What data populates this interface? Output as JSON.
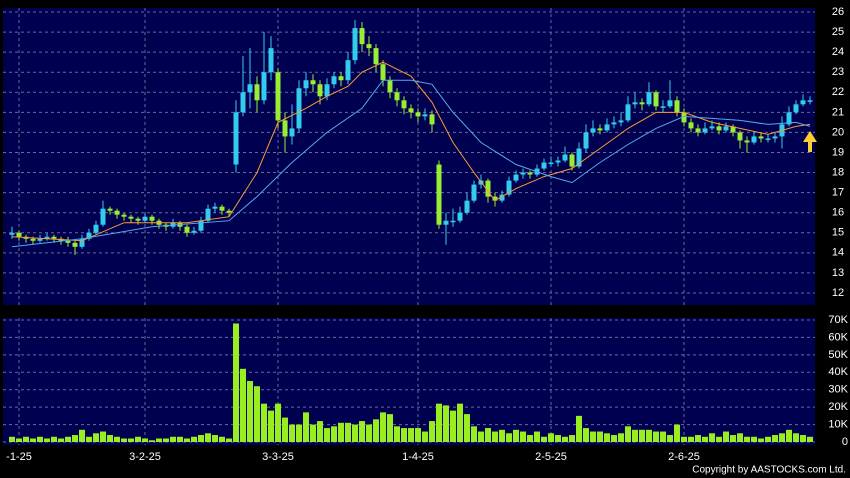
{
  "chart_data": {
    "type": "candlestick",
    "up_color": "#33ccee",
    "down_color": "#99ee33",
    "grid": true,
    "ylim": [
      11.4,
      26.2
    ],
    "yticks": [
      12,
      13,
      14,
      15,
      16,
      17,
      18,
      19,
      20,
      21,
      22,
      23,
      24,
      25,
      26
    ],
    "categories": [
      null,
      "-1-25",
      null,
      null,
      null,
      null,
      null,
      null,
      null,
      null,
      null,
      null,
      null,
      null,
      null,
      null,
      null,
      null,
      null,
      "3-2-25",
      null,
      null,
      null,
      null,
      null,
      null,
      null,
      null,
      null,
      null,
      null,
      null,
      null,
      null,
      null,
      null,
      null,
      null,
      "3-3-25",
      null,
      null,
      null,
      null,
      null,
      null,
      null,
      null,
      null,
      null,
      null,
      null,
      null,
      null,
      null,
      null,
      null,
      null,
      null,
      "1-4-25",
      null,
      null,
      null,
      null,
      null,
      null,
      null,
      null,
      null,
      null,
      null,
      null,
      null,
      null,
      null,
      null,
      null,
      null,
      "2-5-25",
      null,
      null,
      null,
      null,
      null,
      null,
      null,
      null,
      null,
      null,
      null,
      null,
      null,
      null,
      null,
      null,
      null,
      null,
      "2-6-25",
      null,
      null,
      null,
      null,
      null,
      null,
      null,
      null,
      null,
      null,
      null,
      null,
      null,
      null,
      null,
      null,
      null,
      null
    ],
    "candles": [
      [
        14.9,
        15.3,
        14.7,
        15.0
      ],
      [
        15.0,
        15.1,
        14.6,
        14.8
      ],
      [
        14.8,
        14.9,
        14.5,
        14.7
      ],
      [
        14.7,
        14.8,
        14.4,
        14.6
      ],
      [
        14.6,
        14.9,
        14.5,
        14.7
      ],
      [
        14.7,
        15.0,
        14.6,
        14.8
      ],
      [
        14.8,
        14.9,
        14.5,
        14.7
      ],
      [
        14.7,
        14.8,
        14.4,
        14.6
      ],
      [
        14.6,
        14.8,
        14.3,
        14.5
      ],
      [
        14.5,
        14.6,
        13.9,
        14.3
      ],
      [
        14.3,
        14.9,
        14.2,
        14.7
      ],
      [
        14.7,
        15.2,
        14.6,
        15.0
      ],
      [
        15.0,
        15.6,
        14.9,
        15.4
      ],
      [
        15.4,
        16.6,
        15.3,
        16.2
      ],
      [
        16.2,
        16.3,
        15.9,
        16.1
      ],
      [
        16.1,
        16.2,
        15.7,
        15.9
      ],
      [
        15.9,
        16.0,
        15.6,
        15.8
      ],
      [
        15.8,
        15.9,
        15.5,
        15.7
      ],
      [
        15.7,
        15.8,
        15.4,
        15.6
      ],
      [
        15.6,
        16.0,
        15.5,
        15.8
      ],
      [
        15.8,
        15.9,
        15.4,
        15.6
      ],
      [
        15.6,
        15.7,
        15.2,
        15.4
      ],
      [
        15.4,
        15.5,
        15.1,
        15.3
      ],
      [
        15.3,
        15.7,
        15.2,
        15.5
      ],
      [
        15.5,
        15.6,
        15.1,
        15.3
      ],
      [
        15.3,
        15.4,
        14.8,
        15.0
      ],
      [
        15.0,
        15.3,
        14.9,
        15.1
      ],
      [
        15.1,
        15.8,
        15.0,
        15.6
      ],
      [
        15.6,
        16.4,
        15.5,
        16.2
      ],
      [
        16.2,
        16.5,
        16.0,
        16.3
      ],
      [
        16.3,
        16.4,
        15.9,
        16.1
      ],
      [
        16.1,
        16.2,
        15.8,
        16.0
      ],
      [
        18.4,
        21.6,
        18.0,
        21.0
      ],
      [
        21.0,
        23.8,
        20.8,
        22.0
      ],
      [
        22.0,
        24.2,
        21.2,
        22.4
      ],
      [
        22.4,
        22.8,
        21.0,
        21.6
      ],
      [
        21.6,
        25.0,
        21.4,
        23.0
      ],
      [
        23.0,
        24.8,
        22.6,
        24.2
      ],
      [
        23.0,
        23.2,
        20.2,
        20.6
      ],
      [
        20.6,
        21.0,
        19.0,
        19.8
      ],
      [
        19.8,
        21.4,
        19.4,
        20.2
      ],
      [
        20.2,
        22.6,
        20.0,
        22.2
      ],
      [
        22.2,
        23.0,
        21.8,
        22.6
      ],
      [
        22.6,
        22.9,
        22.0,
        22.4
      ],
      [
        22.4,
        22.6,
        21.4,
        21.8
      ],
      [
        21.8,
        22.7,
        21.6,
        22.4
      ],
      [
        22.4,
        23.0,
        22.2,
        22.8
      ],
      [
        22.8,
        23.0,
        22.3,
        22.6
      ],
      [
        22.6,
        24.0,
        22.4,
        23.6
      ],
      [
        23.6,
        25.6,
        23.4,
        25.2
      ],
      [
        25.2,
        25.5,
        24.0,
        24.4
      ],
      [
        24.4,
        24.8,
        23.8,
        24.2
      ],
      [
        24.2,
        24.4,
        23.0,
        23.4
      ],
      [
        23.4,
        23.6,
        22.3,
        22.6
      ],
      [
        22.6,
        22.8,
        21.7,
        22.0
      ],
      [
        22.0,
        22.2,
        21.3,
        21.6
      ],
      [
        21.6,
        21.8,
        20.9,
        21.2
      ],
      [
        21.2,
        21.4,
        20.7,
        21.0
      ],
      [
        21.0,
        21.2,
        20.5,
        20.8
      ],
      [
        20.8,
        21.2,
        20.6,
        20.9
      ],
      [
        20.9,
        21.1,
        20.0,
        20.4
      ],
      [
        18.4,
        18.6,
        15.2,
        15.4
      ],
      [
        15.4,
        16.0,
        14.4,
        15.6
      ],
      [
        15.6,
        16.2,
        15.3,
        15.6
      ],
      [
        15.6,
        16.3,
        15.5,
        16.0
      ],
      [
        16.0,
        17.0,
        15.9,
        16.6
      ],
      [
        16.6,
        17.6,
        16.5,
        17.4
      ],
      [
        17.4,
        17.9,
        17.2,
        17.6
      ],
      [
        17.6,
        17.7,
        16.5,
        16.8
      ],
      [
        16.8,
        17.0,
        16.3,
        16.6
      ],
      [
        16.6,
        17.1,
        16.5,
        16.9
      ],
      [
        16.9,
        17.8,
        16.8,
        17.6
      ],
      [
        17.6,
        18.1,
        17.5,
        17.9
      ],
      [
        17.9,
        18.2,
        17.7,
        18.0
      ],
      [
        18.0,
        18.1,
        17.7,
        17.9
      ],
      [
        17.9,
        18.4,
        17.8,
        18.2
      ],
      [
        18.2,
        18.7,
        18.1,
        18.5
      ],
      [
        18.5,
        18.8,
        18.3,
        18.5
      ],
      [
        18.5,
        18.8,
        18.3,
        18.6
      ],
      [
        18.6,
        19.3,
        18.5,
        18.9
      ],
      [
        18.9,
        19.0,
        18.1,
        18.3
      ],
      [
        18.3,
        19.5,
        18.2,
        19.2
      ],
      [
        19.2,
        20.4,
        19.0,
        20.0
      ],
      [
        20.0,
        20.6,
        19.8,
        20.2
      ],
      [
        20.2,
        20.4,
        19.9,
        20.1
      ],
      [
        20.1,
        20.7,
        20.0,
        20.4
      ],
      [
        20.4,
        20.8,
        20.2,
        20.5
      ],
      [
        20.5,
        21.0,
        20.3,
        20.6
      ],
      [
        20.6,
        21.8,
        20.5,
        21.4
      ],
      [
        21.4,
        22.0,
        21.2,
        21.5
      ],
      [
        21.5,
        21.7,
        21.1,
        21.4
      ],
      [
        21.4,
        22.5,
        21.3,
        22.0
      ],
      [
        22.0,
        22.1,
        21.1,
        21.3
      ],
      [
        21.3,
        21.6,
        21.0,
        21.3
      ],
      [
        21.3,
        22.6,
        21.2,
        21.6
      ],
      [
        21.6,
        21.8,
        20.8,
        21.0
      ],
      [
        21.0,
        21.2,
        20.3,
        20.5
      ],
      [
        20.5,
        20.7,
        20.0,
        20.2
      ],
      [
        20.2,
        20.4,
        19.8,
        20.0
      ],
      [
        20.0,
        20.5,
        19.9,
        20.2
      ],
      [
        20.2,
        20.6,
        20.1,
        20.3
      ],
      [
        20.3,
        20.5,
        19.9,
        20.1
      ],
      [
        20.1,
        20.5,
        20.0,
        20.3
      ],
      [
        20.3,
        20.4,
        19.8,
        20.0
      ],
      [
        20.0,
        20.1,
        19.2,
        19.6
      ],
      [
        19.6,
        19.8,
        19.0,
        19.5
      ],
      [
        19.5,
        20.0,
        19.4,
        19.8
      ],
      [
        19.8,
        20.0,
        19.5,
        19.7
      ],
      [
        19.7,
        19.9,
        19.5,
        19.7
      ],
      [
        19.7,
        20.0,
        19.5,
        19.8
      ],
      [
        19.8,
        20.8,
        19.2,
        20.4
      ],
      [
        20.4,
        21.3,
        20.3,
        21.0
      ],
      [
        21.0,
        21.6,
        20.9,
        21.4
      ],
      [
        21.4,
        21.9,
        21.3,
        21.6
      ],
      [
        21.6,
        21.8,
        21.4,
        21.6
      ]
    ],
    "lines": [
      {
        "color": "#ff9933",
        "x": [
          0,
          10,
          16,
          25,
          31,
          35,
          38,
          42,
          45,
          48,
          50,
          53,
          57,
          60,
          63,
          66,
          69,
          72,
          76,
          80,
          84,
          88,
          92,
          96,
          100,
          104,
          108,
          112,
          114
        ],
        "values": [
          14.8,
          14.6,
          15.5,
          15.5,
          15.8,
          18,
          20.5,
          21.2,
          21.8,
          22.3,
          23,
          23.5,
          22.8,
          21.5,
          19.5,
          18,
          16.6,
          17.2,
          17.8,
          18.2,
          19.2,
          20.2,
          21,
          21,
          20.5,
          20.2,
          19.9,
          20.3,
          20.4
        ]
      },
      {
        "color": "#55aaee",
        "x": [
          0,
          10,
          20,
          31,
          35,
          40,
          45,
          50,
          53,
          57,
          60,
          63,
          67,
          72,
          77,
          80,
          84,
          88,
          92,
          96,
          100,
          104,
          108,
          112,
          114
        ],
        "values": [
          14.3,
          14.7,
          15.3,
          15.6,
          16.8,
          18.5,
          20,
          21.2,
          22.6,
          22.6,
          22.4,
          21,
          19.5,
          18.4,
          17.8,
          17.5,
          18.5,
          19.4,
          20.2,
          20.8,
          20.7,
          20.6,
          20.4,
          20.5,
          20.3
        ]
      }
    ],
    "volume": {
      "type": "bar",
      "color": "#99ee22",
      "ylim": [
        0,
        70000
      ],
      "yticks": [
        0,
        {
          "value": 10000,
          "label": "10K"
        },
        {
          "value": 20000,
          "label": "20K"
        },
        {
          "value": 30000,
          "label": "30K"
        },
        {
          "value": 40000,
          "label": "40K"
        },
        {
          "value": 50000,
          "label": "50K"
        },
        {
          "value": 60000,
          "label": "60K"
        },
        {
          "value": 70000,
          "label": "70K"
        }
      ],
      "values": [
        3000,
        2000,
        3000,
        2000,
        3000,
        2000,
        3000,
        2000,
        3000,
        4000,
        7000,
        3000,
        5000,
        6000,
        4000,
        3000,
        2000,
        2000,
        3000,
        2000,
        1000,
        2000,
        2000,
        3000,
        3000,
        2000,
        3000,
        4000,
        5000,
        4000,
        3000,
        2000,
        68000,
        42000,
        35000,
        32000,
        22000,
        18000,
        22000,
        14000,
        10000,
        10000,
        17000,
        10000,
        12000,
        8000,
        9000,
        11000,
        11000,
        10000,
        12000,
        10000,
        13000,
        17000,
        16000,
        9000,
        8000,
        8000,
        8000,
        6000,
        12000,
        22000,
        21000,
        18000,
        22000,
        16000,
        9000,
        6000,
        8000,
        6000,
        7000,
        5000,
        7000,
        6000,
        4000,
        6000,
        3000,
        5000,
        4000,
        3000,
        4000,
        15000,
        8000,
        6000,
        6000,
        5000,
        4000,
        5000,
        9000,
        7000,
        7000,
        7000,
        6000,
        6000,
        4000,
        10000,
        3000,
        3000,
        4000,
        3000,
        5000,
        3000,
        6000,
        4000,
        5000,
        3000,
        3000,
        2000,
        3000,
        4000,
        5000,
        7000,
        5000,
        4000,
        3000
      ]
    },
    "copyright": "Copyright by AASTOCKS.com Ltd."
  }
}
